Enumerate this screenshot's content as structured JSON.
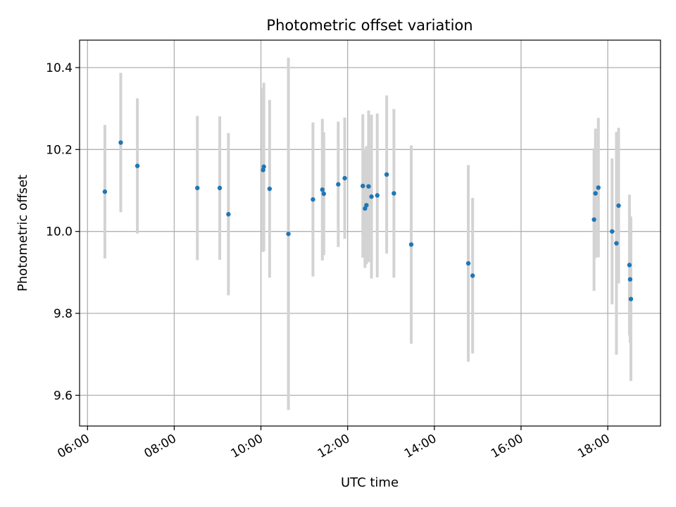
{
  "chart_data": {
    "type": "scatter",
    "title": "Photometric offset variation",
    "xlabel": "UTC time",
    "ylabel": "Photometric offset",
    "x_ticks": [
      "06:00",
      "08:00",
      "10:00",
      "12:00",
      "14:00",
      "16:00",
      "18:00"
    ],
    "y_ticks": [
      "9.6",
      "9.8",
      "10.0",
      "10.2",
      "10.4"
    ],
    "xlim": [
      "05:49",
      "19:13"
    ],
    "ylim": [
      9.525,
      10.467
    ],
    "grid": true,
    "colors": {
      "point": "#1f77b4",
      "errorbar": "#d3d3d3",
      "grid": "#b0b0b0"
    },
    "points": [
      {
        "x": "06:24",
        "y": 10.097,
        "err": 0.163
      },
      {
        "x": "06:46",
        "y": 10.217,
        "err": 0.17
      },
      {
        "x": "07:09",
        "y": 10.16,
        "err": 0.165
      },
      {
        "x": "08:32",
        "y": 10.106,
        "err": 0.176
      },
      {
        "x": "09:03",
        "y": 10.106,
        "err": 0.175
      },
      {
        "x": "09:15",
        "y": 10.042,
        "err": 0.198
      },
      {
        "x": "10:03",
        "y": 10.15,
        "err": 0.2
      },
      {
        "x": "10:04",
        "y": 10.158,
        "err": 0.205
      },
      {
        "x": "10:12",
        "y": 10.104,
        "err": 0.217
      },
      {
        "x": "10:38",
        "y": 9.994,
        "err": 0.43
      },
      {
        "x": "11:12",
        "y": 10.078,
        "err": 0.188
      },
      {
        "x": "11:25",
        "y": 10.102,
        "err": 0.173
      },
      {
        "x": "11:27",
        "y": 10.092,
        "err": 0.15
      },
      {
        "x": "11:47",
        "y": 10.115,
        "err": 0.153
      },
      {
        "x": "11:56",
        "y": 10.13,
        "err": 0.148
      },
      {
        "x": "12:21",
        "y": 10.111,
        "err": 0.175
      },
      {
        "x": "12:24",
        "y": 10.056,
        "err": 0.145
      },
      {
        "x": "12:26",
        "y": 10.064,
        "err": 0.144
      },
      {
        "x": "12:29",
        "y": 10.11,
        "err": 0.185
      },
      {
        "x": "12:33",
        "y": 10.085,
        "err": 0.2
      },
      {
        "x": "12:41",
        "y": 10.088,
        "err": 0.2
      },
      {
        "x": "12:54",
        "y": 10.139,
        "err": 0.193
      },
      {
        "x": "13:04",
        "y": 10.093,
        "err": 0.206
      },
      {
        "x": "13:28",
        "y": 9.968,
        "err": 0.242
      },
      {
        "x": "14:47",
        "y": 9.922,
        "err": 0.24
      },
      {
        "x": "14:53",
        "y": 9.892,
        "err": 0.19
      },
      {
        "x": "17:41",
        "y": 10.029,
        "err": 0.174
      },
      {
        "x": "17:43",
        "y": 10.093,
        "err": 0.158
      },
      {
        "x": "17:47",
        "y": 10.107,
        "err": 0.17
      },
      {
        "x": "18:06",
        "y": 10.0,
        "err": 0.178
      },
      {
        "x": "18:12",
        "y": 9.971,
        "err": 0.272
      },
      {
        "x": "18:15",
        "y": 10.063,
        "err": 0.19
      },
      {
        "x": "18:30",
        "y": 9.918,
        "err": 0.172
      },
      {
        "x": "18:31",
        "y": 9.883,
        "err": 0.155
      },
      {
        "x": "18:32",
        "y": 9.835,
        "err": 0.2
      }
    ]
  }
}
